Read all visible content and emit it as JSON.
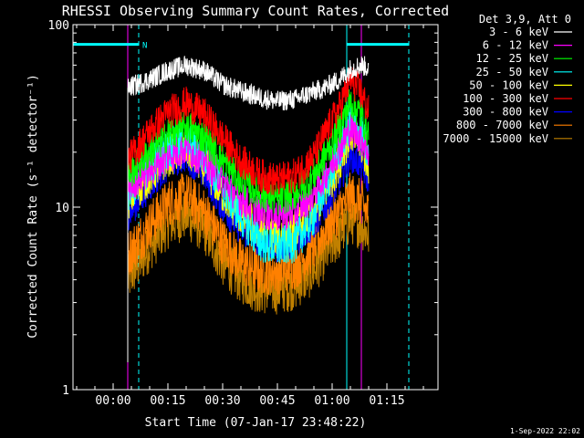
{
  "chart_data": {
    "type": "line",
    "title": "RHESSI Observing Summary Count Rates, Corrected",
    "xlabel": "Start Time (07-Jan-17 23:48:22)",
    "ylabel": "Corrected Count Rate (s⁻¹ detector⁻¹)",
    "ylog": true,
    "ylim": [
      1,
      100
    ],
    "xlim_minutes": [
      -11,
      89
    ],
    "x_ticks": [
      {
        "m": 0,
        "label": "00:00"
      },
      {
        "m": 15,
        "label": "00:15"
      },
      {
        "m": 30,
        "label": "00:30"
      },
      {
        "m": 45,
        "label": "00:45"
      },
      {
        "m": 60,
        "label": "01:00"
      },
      {
        "m": 75,
        "label": "01:15"
      }
    ],
    "y_ticks": [
      {
        "v": 1,
        "label": "1"
      },
      {
        "v": 10,
        "label": "10"
      },
      {
        "v": 100,
        "label": "100"
      }
    ],
    "legend_title": "Det 3,9, Att 0",
    "legend_position": "top-right, outside plot",
    "data_start_min": 4,
    "data_end_min": 70,
    "series": [
      {
        "name": "3 - 6 keV",
        "color": "#ffffff",
        "noise": 0.06,
        "x": [
          4,
          10,
          15,
          20,
          25,
          30,
          35,
          40,
          45,
          50,
          55,
          58,
          62,
          65,
          68,
          70
        ],
        "y": [
          45,
          50,
          56,
          60,
          56,
          47,
          43,
          40,
          38,
          39,
          43,
          45,
          50,
          57,
          60,
          58
        ]
      },
      {
        "name": "6 - 12 keV",
        "color": "#ff00ff",
        "noise": 0.1,
        "x": [
          4,
          10,
          15,
          20,
          25,
          30,
          35,
          40,
          45,
          50,
          55,
          58,
          62,
          65,
          68,
          70
        ],
        "y": [
          13,
          16,
          19,
          21,
          18,
          14,
          11,
          9.5,
          9,
          9.5,
          12,
          15,
          21,
          27,
          24,
          20
        ]
      },
      {
        "name": "12 - 25 keV",
        "color": "#00ff00",
        "noise": 0.1,
        "x": [
          4,
          10,
          15,
          20,
          25,
          30,
          35,
          40,
          45,
          50,
          55,
          58,
          62,
          65,
          68,
          70
        ],
        "y": [
          15,
          20,
          25,
          28,
          24,
          18,
          14,
          12,
          11,
          12,
          15,
          19,
          27,
          38,
          32,
          25
        ]
      },
      {
        "name": "25 - 50 keV",
        "color": "#00ffff",
        "noise": 0.12,
        "x": [
          4,
          10,
          15,
          20,
          25,
          30,
          35,
          40,
          45,
          50,
          55,
          58,
          62,
          65,
          68,
          70
        ],
        "y": [
          12,
          17,
          21,
          23,
          19,
          13,
          9,
          6.5,
          6,
          6.5,
          9,
          13,
          20,
          30,
          25,
          19
        ]
      },
      {
        "name": "50 - 100 keV",
        "color": "#ffff00",
        "noise": 0.12,
        "x": [
          4,
          10,
          15,
          20,
          25,
          30,
          35,
          40,
          45,
          50,
          55,
          58,
          62,
          65,
          68,
          70
        ],
        "y": [
          11,
          15,
          19,
          21,
          17,
          12,
          9,
          7.5,
          7,
          7.5,
          9.5,
          12,
          18,
          26,
          22,
          17
        ]
      },
      {
        "name": "100 - 300 keV",
        "color": "#ff0000",
        "noise": 0.1,
        "x": [
          4,
          10,
          15,
          20,
          25,
          30,
          35,
          40,
          45,
          50,
          55,
          58,
          62,
          65,
          68,
          70
        ],
        "y": [
          18,
          26,
          33,
          37,
          32,
          24,
          18,
          15,
          14,
          15,
          19,
          25,
          35,
          50,
          42,
          33
        ]
      },
      {
        "name": "300 - 800 keV",
        "color": "#0000ff",
        "noise": 0.09,
        "x": [
          4,
          10,
          15,
          20,
          25,
          30,
          35,
          40,
          45,
          50,
          55,
          58,
          62,
          65,
          68,
          70
        ],
        "y": [
          9,
          13,
          17,
          19,
          15,
          10,
          7.5,
          6.5,
          6,
          6.5,
          8,
          10,
          14,
          19,
          17,
          14
        ]
      },
      {
        "name": "800 - 7000 keV",
        "color": "#ff8000",
        "noise": 0.14,
        "x": [
          4,
          10,
          15,
          20,
          25,
          30,
          35,
          40,
          45,
          50,
          55,
          58,
          62,
          65,
          68,
          70
        ],
        "y": [
          5.5,
          8,
          10.5,
          11.5,
          9.5,
          6.5,
          5,
          4.5,
          4.5,
          4.8,
          6,
          7.5,
          9.5,
          11.5,
          10.5,
          9
        ]
      },
      {
        "name": "7000 - 15000 keV",
        "color": "#c08000",
        "noise": 0.14,
        "x": [
          4,
          10,
          15,
          20,
          25,
          30,
          35,
          40,
          45,
          50,
          55,
          58,
          62,
          65,
          68,
          70
        ],
        "y": [
          4,
          6,
          8,
          9,
          7.5,
          5,
          4,
          3.5,
          3.5,
          3.7,
          4.5,
          5.5,
          7,
          8.5,
          8,
          7
        ]
      }
    ],
    "vlines": [
      {
        "m": -11,
        "color": "#00ffff",
        "style": "solid"
      },
      {
        "m": 7,
        "color": "#00ffff",
        "style": "dashed"
      },
      {
        "m": 64,
        "color": "#00ffff",
        "style": "solid"
      },
      {
        "m": 81,
        "color": "#00ffff",
        "style": "dashed"
      },
      {
        "m": 4,
        "color": "#ff00ff",
        "style": "solid"
      },
      {
        "m": 68,
        "color": "#ff00ff",
        "style": "solid"
      }
    ],
    "bars": [
      {
        "from": -11,
        "to": 7,
        "y": 78,
        "color": "#00ffff",
        "label": "N"
      },
      {
        "from": 64,
        "to": 81,
        "y": 78,
        "color": "#00ffff",
        "label": ""
      }
    ]
  },
  "footer": {
    "timestamp": "1-Sep-2022 22:02"
  }
}
